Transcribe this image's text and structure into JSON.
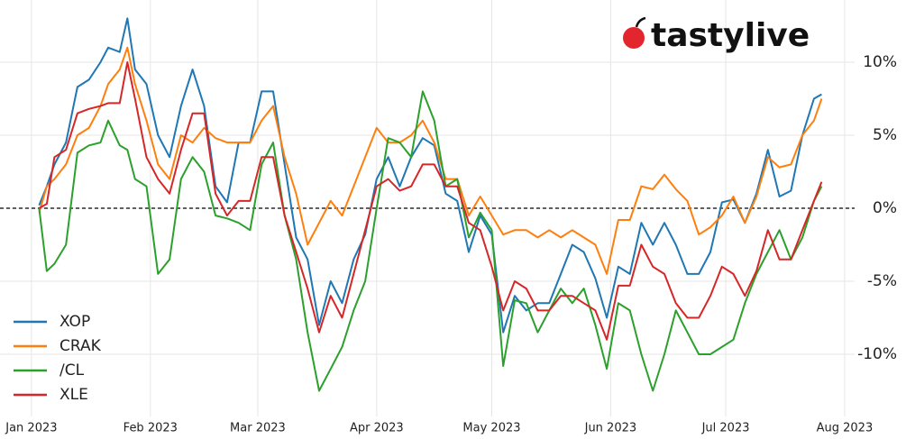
{
  "chart_data": {
    "type": "line",
    "logo": "tastylive",
    "x": [
      2,
      4,
      6,
      9,
      12,
      15,
      18,
      20,
      23,
      25,
      27,
      30,
      33,
      36,
      39,
      42,
      45,
      48,
      51,
      54,
      57,
      60,
      63,
      66,
      69,
      72,
      75,
      78,
      81,
      84,
      87,
      90,
      93,
      96,
      99,
      102,
      105,
      108,
      111,
      114,
      117,
      120,
      123,
      126,
      129,
      132,
      135,
      138,
      141,
      144,
      147,
      150,
      153,
      156,
      159,
      162,
      165,
      168,
      171,
      174,
      177,
      180,
      183,
      186,
      189,
      192,
      195,
      198,
      201,
      204,
      206
    ],
    "series": [
      {
        "name": "XOP",
        "color": "#1f77b4",
        "values": [
          0.2,
          1.5,
          3,
          4.5,
          8.3,
          8.8,
          10,
          11,
          10.7,
          13,
          9.5,
          8.5,
          5,
          3.5,
          7,
          9.5,
          7,
          1.5,
          0.4,
          4.5,
          4.5,
          8,
          8,
          3,
          -2,
          -3.5,
          -8,
          -5,
          -6.5,
          -3.5,
          -1.8,
          2,
          3.5,
          1.5,
          3.5,
          4.8,
          4.3,
          1,
          0.5,
          -3,
          -0.5,
          -1.8,
          -8.5,
          -6,
          -7,
          -6.5,
          -6.5,
          -4.5,
          -2.5,
          -3,
          -4.8,
          -7.5,
          -4,
          -4.5,
          -1,
          -2.5,
          -1,
          -2.5,
          -4.5,
          -4.5,
          -3,
          0.4,
          0.6,
          -1,
          1,
          4,
          0.8,
          1.2,
          5,
          7.5,
          7.8
        ]
      },
      {
        "name": "CRAK",
        "color": "#ff7f0e",
        "values": [
          -0.3,
          1.5,
          2,
          3,
          5,
          5.5,
          7,
          8.5,
          9.5,
          11,
          8.5,
          6,
          3,
          2,
          5,
          4.5,
          5.5,
          4.8,
          4.5,
          4.5,
          4.5,
          6,
          7,
          3.5,
          1,
          -2.5,
          -1,
          0.5,
          -0.5,
          1.5,
          3.5,
          5.5,
          4.5,
          4.5,
          5,
          6,
          4.5,
          2,
          2,
          -0.5,
          0.8,
          -0.5,
          -1.8,
          -1.5,
          -1.5,
          -2,
          -1.5,
          -2,
          -1.5,
          -2,
          -2.5,
          -4.5,
          -0.8,
          -0.8,
          1.5,
          1.3,
          2.3,
          1.3,
          0.5,
          -1.8,
          -1.3,
          -0.5,
          0.8,
          -1,
          0.8,
          3.5,
          2.8,
          3,
          5,
          6,
          7.5
        ]
      },
      {
        "name": "/CL",
        "color": "#2ca02c",
        "values": [
          0,
          -4.3,
          -3.8,
          -2.5,
          3.8,
          4.3,
          4.5,
          6,
          4.3,
          4,
          2,
          1.5,
          -4.5,
          -3.5,
          2,
          3.5,
          2.5,
          -0.5,
          -0.7,
          -1,
          -1.5,
          3,
          4.5,
          -0.5,
          -3.5,
          -8.5,
          -12.5,
          -11,
          -9.5,
          -7,
          -5,
          0,
          4.8,
          4.5,
          3.5,
          8,
          6,
          1.5,
          2,
          -2,
          -0.3,
          -1.5,
          -10.8,
          -6.3,
          -6.5,
          -8.5,
          -7,
          -5.5,
          -6.5,
          -5.5,
          -8,
          -11,
          -6.5,
          -7,
          -10,
          -12.5,
          -10,
          -7,
          -8.5,
          -10,
          -10,
          -9.5,
          -9,
          -6.5,
          -4.5,
          -3,
          -1.5,
          -3.5,
          -2,
          0.5,
          1.5
        ]
      },
      {
        "name": "XLE",
        "color": "#d62728",
        "values": [
          0,
          0.3,
          3.5,
          4,
          6.5,
          6.8,
          7,
          7.2,
          7.2,
          10,
          7.5,
          3.5,
          2,
          1,
          4,
          6.5,
          6.5,
          1,
          -0.5,
          0.5,
          0.5,
          3.5,
          3.5,
          -0.5,
          -3,
          -5.5,
          -8.5,
          -6,
          -7.5,
          -4.5,
          -1.5,
          1.5,
          2,
          1.2,
          1.5,
          3,
          3,
          1.5,
          1.5,
          -1,
          -1.5,
          -4,
          -7,
          -5,
          -5.5,
          -7,
          -7,
          -6,
          -6,
          -6.5,
          -7,
          -9,
          -5.3,
          -5.3,
          -2.5,
          -4,
          -4.5,
          -6.5,
          -7.5,
          -7.5,
          -6,
          -4,
          -4.5,
          -6,
          -4.3,
          -1.5,
          -3.5,
          -3.5,
          -1.5,
          0.5,
          1.8
        ]
      }
    ],
    "xlim": [
      -8.2,
      214.6
    ],
    "xticks": [
      {
        "value": 0,
        "label": "Jan 2023"
      },
      {
        "value": 31,
        "label": "Feb 2023"
      },
      {
        "value": 59,
        "label": "Mar 2023"
      },
      {
        "value": 90,
        "label": "Apr 2023"
      },
      {
        "value": 120,
        "label": "May 2023"
      },
      {
        "value": 151,
        "label": "Jun 2023"
      },
      {
        "value": 181,
        "label": "Jul 2023"
      },
      {
        "value": 212,
        "label": "Aug 2023"
      }
    ],
    "ylim": [
      -14.26,
      14.26
    ],
    "yticks": [
      {
        "value": -10,
        "label": "-10%"
      },
      {
        "value": -5,
        "label": "-5%"
      },
      {
        "value": 0,
        "label": "0%"
      },
      {
        "value": 5,
        "label": "5%"
      },
      {
        "value": 10,
        "label": "10%"
      }
    ],
    "reference_line": 0,
    "grid": true,
    "legend": "lower left"
  }
}
